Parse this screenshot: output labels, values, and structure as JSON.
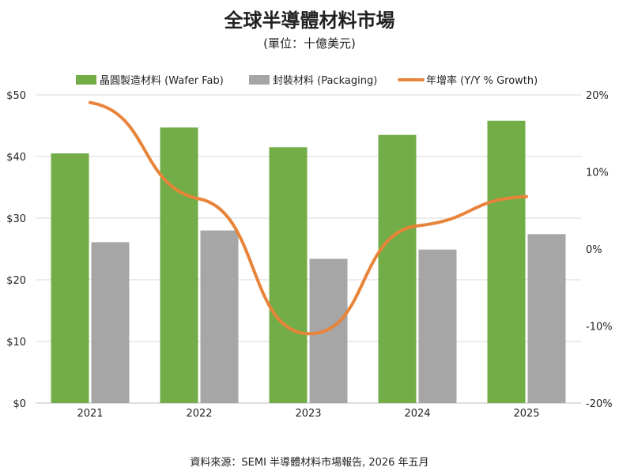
{
  "title": "全球半導體材料市場",
  "subtitle": "(單位：十億美元)",
  "source": "資料來源：SEMI 半導體材料市場報告, 2026 年五月",
  "colors": {
    "wafer": "#72ad47",
    "packaging": "#a6a6a6",
    "growth": "#e8843a",
    "grid": "#d9d9d9"
  },
  "chart_data": {
    "type": "bar",
    "categories": [
      "2021",
      "2022",
      "2023",
      "2024",
      "2025"
    ],
    "series": [
      {
        "name": "晶圓製造材料 (Wafer Fab)",
        "type": "bar",
        "axis": "left",
        "values": [
          40.5,
          44.7,
          41.5,
          43.5,
          45.8
        ]
      },
      {
        "name": "封裝材料 (Packaging)",
        "type": "bar",
        "axis": "left",
        "values": [
          26.1,
          28.0,
          23.4,
          24.9,
          27.4
        ]
      },
      {
        "name": "年增率 (Y/Y % Growth)",
        "type": "line",
        "axis": "right",
        "smooth": true,
        "values": [
          19.0,
          6.5,
          -11.0,
          3.0,
          6.8
        ]
      }
    ],
    "yleft": {
      "ylim": [
        0,
        50
      ],
      "ticks": [
        "$0",
        "$10",
        "$20",
        "$30",
        "$40",
        "$50"
      ]
    },
    "yright": {
      "ylim": [
        -20,
        20
      ],
      "ticks": [
        "-20%",
        "-10%",
        "0%",
        "10%",
        "20%"
      ]
    },
    "grid": true,
    "legend": "top"
  }
}
